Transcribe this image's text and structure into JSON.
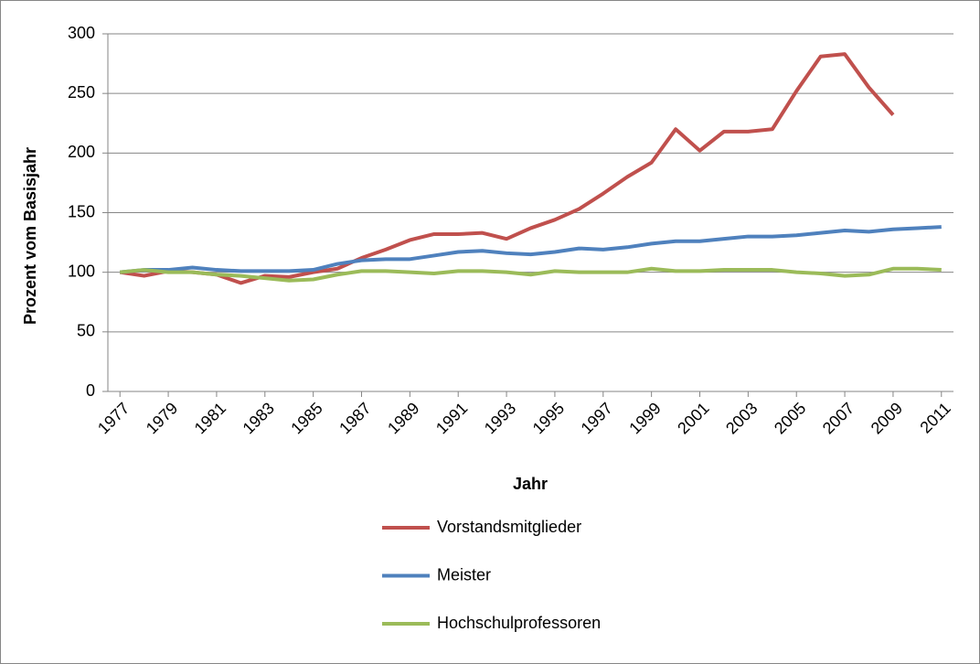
{
  "chart_data": {
    "type": "line",
    "x_label": "Jahr",
    "y_label": "Prozent vom Basisjahr",
    "x": [
      1977,
      1978,
      1979,
      1980,
      1981,
      1982,
      1983,
      1984,
      1985,
      1986,
      1987,
      1988,
      1989,
      1990,
      1991,
      1992,
      1993,
      1994,
      1995,
      1996,
      1997,
      1998,
      1999,
      2000,
      2001,
      2002,
      2003,
      2004,
      2005,
      2006,
      2007,
      2008,
      2009,
      2010,
      2011
    ],
    "xlim": [
      1976.5,
      2011.5
    ],
    "xticks": [
      1977,
      1979,
      1981,
      1983,
      1985,
      1987,
      1989,
      1991,
      1993,
      1995,
      1997,
      1999,
      2001,
      2003,
      2005,
      2007,
      2009,
      2011
    ],
    "ylim": [
      0,
      300
    ],
    "yticks": [
      0,
      50,
      100,
      150,
      200,
      250,
      300
    ],
    "grid": true,
    "legend": "bottom",
    "series": [
      {
        "name": "Vorstandsmitglieder",
        "color": "#c0504d",
        "values": [
          100,
          97,
          101,
          100,
          98,
          91,
          97,
          96,
          100,
          103,
          112,
          119,
          127,
          132,
          132,
          133,
          128,
          137,
          144,
          153,
          166,
          180,
          192,
          220,
          202,
          218,
          218,
          220,
          252,
          281,
          283,
          255,
          232,
          null,
          null
        ]
      },
      {
        "name": "Meister",
        "color": "#4f81bd",
        "values": [
          100,
          102,
          102,
          104,
          102,
          101,
          101,
          101,
          102,
          107,
          110,
          111,
          111,
          114,
          117,
          118,
          116,
          115,
          117,
          120,
          119,
          121,
          124,
          126,
          126,
          128,
          130,
          130,
          131,
          133,
          135,
          134,
          136,
          137,
          138
        ]
      },
      {
        "name": "Hochschulprofessoren",
        "color": "#9bbb59",
        "values": [
          100,
          102,
          100,
          100,
          98,
          97,
          95,
          93,
          94,
          98,
          101,
          101,
          100,
          99,
          101,
          101,
          100,
          98,
          101,
          100,
          100,
          100,
          103,
          101,
          101,
          102,
          102,
          102,
          100,
          99,
          97,
          98,
          103,
          103,
          102
        ]
      }
    ]
  }
}
